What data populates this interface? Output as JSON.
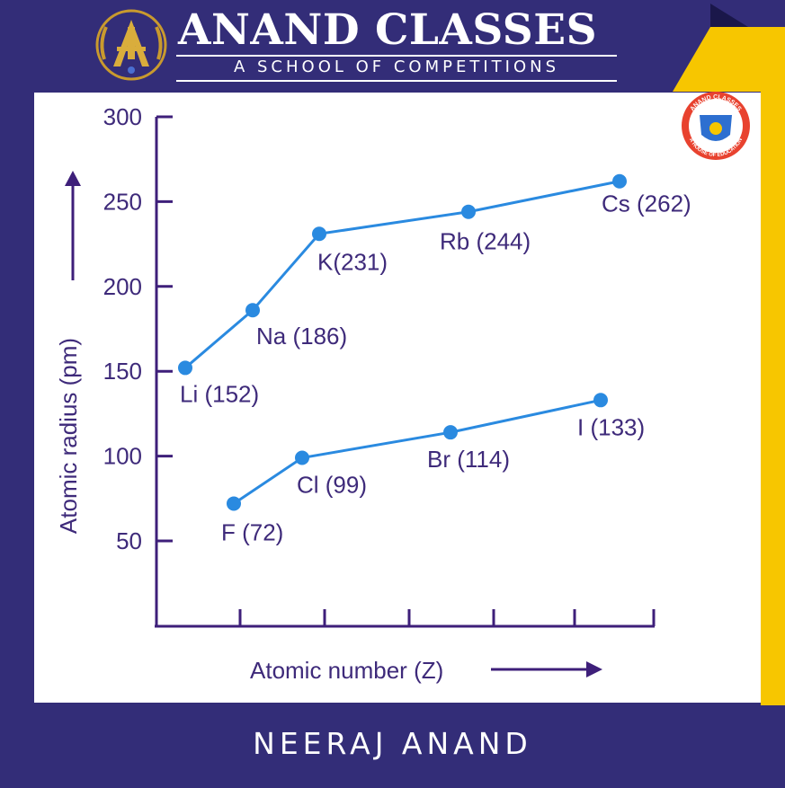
{
  "header": {
    "title": "ANAND CLASSES",
    "subtitle": "A SCHOOL OF  COMPETITIONS",
    "badge_lines": [
      "ANAND CLASSES",
      "A HOUSE OF EDUCATION"
    ]
  },
  "footer": {
    "name": "NEERAJ ANAND"
  },
  "colors": {
    "background": "#332d78",
    "accent_yellow": "#f7c600",
    "axis": "#3e1f7a",
    "series_line": "#2a8ae0",
    "point": "#2a8ae0"
  },
  "chart_data": {
    "type": "line",
    "title": "",
    "xlabel": "Atomic number (Z)",
    "ylabel": "Atomic radius (pm)",
    "ylim": [
      0,
      300
    ],
    "yticks": [
      "300",
      "250",
      "200",
      "150",
      "100",
      "50"
    ],
    "x_tick_count": 6,
    "grid": false,
    "series": [
      {
        "values": [
          152,
          186,
          231,
          244,
          262
        ],
        "labels": [
          "Li (152)",
          "Na (186)",
          "K(231)",
          "Rb (244)",
          "Cs (262)"
        ]
      },
      {
        "values": [
          72,
          99,
          114,
          133
        ],
        "labels": [
          "F (72)",
          "Cl (99)",
          "Br (114)",
          "I (133)"
        ]
      }
    ]
  }
}
